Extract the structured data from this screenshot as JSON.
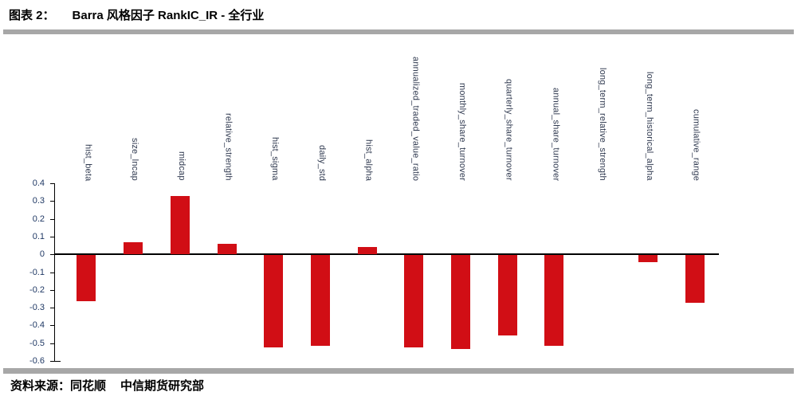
{
  "header": {
    "title_prefix": "图表 2：",
    "title": "Barra 风格因子 RankIC_IR - 全行业"
  },
  "footer": {
    "source_label": "资料来源：",
    "sources": [
      "同花顺",
      "中信期货研究部"
    ]
  },
  "colors": {
    "bar": "#d10e15",
    "axis": "#000000",
    "tick_label": "#1f3864",
    "category_label": "#303a50",
    "divider": "#a7a7a7"
  },
  "chart_data": {
    "type": "bar",
    "title": "Barra 风格因子 RankIC_IR - 全行业",
    "categories": [
      "hist_beta",
      "size_lncap",
      "midcap",
      "relative_strength",
      "hist_sigma",
      "daily_std",
      "hist_alpha",
      "annualized_traded_value_ratio",
      "monthly_share_turnover",
      "quarterly_share_turnover",
      "annual_share_turnover",
      "long_term_relative_strength",
      "long_term_historical_alpha",
      "cumulative_range"
    ],
    "values": [
      -0.26,
      0.07,
      0.33,
      0.06,
      -0.52,
      -0.51,
      0.04,
      -0.52,
      -0.53,
      -0.45,
      -0.51,
      0.0,
      -0.04,
      -0.27
    ],
    "xlabel": "",
    "ylabel": "",
    "ylim": [
      -0.6,
      0.4
    ],
    "ytick_labels": [
      "0.4",
      "0.3",
      "0.2",
      "0.1",
      "0",
      "-0.1",
      "-0.2",
      "-0.3",
      "-0.4",
      "-0.5",
      "-0.6"
    ],
    "ytick_values": [
      0.4,
      0.3,
      0.2,
      0.1,
      0.0,
      -0.1,
      -0.2,
      -0.3,
      -0.4,
      -0.5,
      -0.6
    ],
    "grid": false,
    "legend": "none",
    "bar_color": "#d10e15",
    "category_label_rotation_deg": 90,
    "category_label_position": "above-plot"
  }
}
